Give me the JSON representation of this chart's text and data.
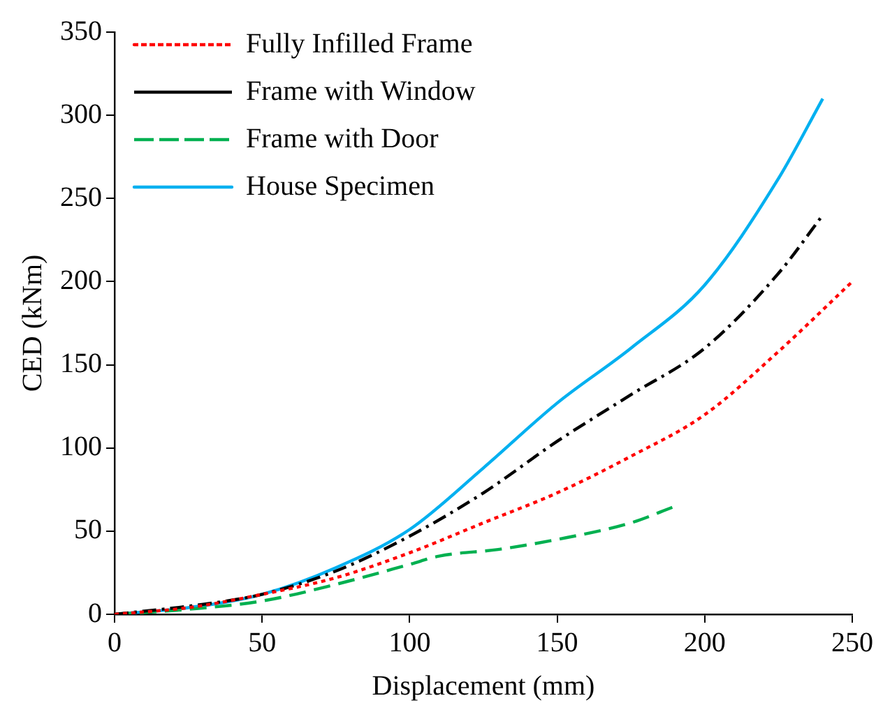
{
  "chart_data": {
    "type": "line",
    "xlabel": "Displacement (mm)",
    "ylabel": "CED (kNm)",
    "xlim": [
      0,
      250
    ],
    "xticks": [
      0,
      50,
      100,
      150,
      200,
      250
    ],
    "ylim": [
      0,
      350
    ],
    "yticks": [
      0,
      50,
      100,
      150,
      200,
      250,
      300,
      350
    ],
    "grid": false,
    "legend": "top left",
    "marker": "none",
    "series": [
      {
        "name": "Fully Infilled Frame",
        "color": "#ff0000",
        "line_style": "dotted",
        "x": [
          0,
          25,
          50,
          75,
          100,
          125,
          150,
          175,
          200,
          225,
          250
        ],
        "values": [
          0,
          4,
          12,
          22,
          37,
          55,
          73,
          95,
          120,
          158,
          200
        ]
      },
      {
        "name": "Frame with Window",
        "color": "#000000",
        "line_style": "dashdot",
        "x": [
          0,
          30,
          50,
          75,
          100,
          125,
          150,
          175,
          200,
          225,
          240
        ],
        "values": [
          0,
          6,
          12,
          26,
          47,
          73,
          104,
          132,
          160,
          205,
          240
        ]
      },
      {
        "name": "Frame with Door",
        "color": "#00b050",
        "line_style": "dashed",
        "x": [
          0,
          25,
          50,
          75,
          100,
          110,
          130,
          150,
          175,
          190
        ],
        "values": [
          0,
          3,
          8,
          18,
          30,
          35,
          39,
          45,
          55,
          65
        ]
      },
      {
        "name": "House Specimen",
        "color": "#00b0f0",
        "line_style": "solid",
        "x": [
          0,
          25,
          50,
          75,
          100,
          125,
          150,
          175,
          200,
          225,
          240
        ],
        "values": [
          0,
          4,
          12,
          28,
          51,
          88,
          127,
          160,
          198,
          262,
          310
        ]
      }
    ]
  }
}
